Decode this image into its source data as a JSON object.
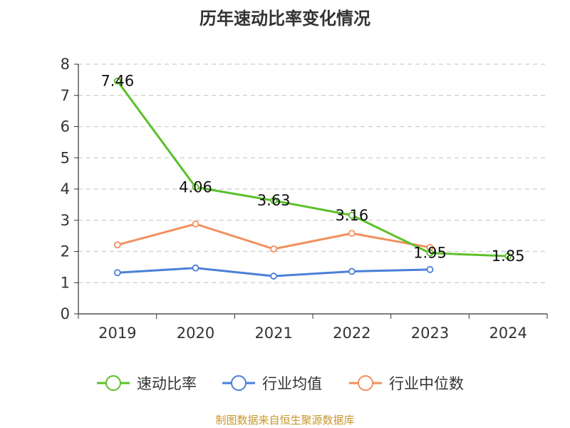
{
  "chart_data": {
    "type": "line",
    "title": "历年速动比率变化情况",
    "categories": [
      "2019",
      "2020",
      "2021",
      "2022",
      "2023",
      "2024"
    ],
    "ylim": [
      0,
      8
    ],
    "yticks": [
      0,
      1,
      2,
      3,
      4,
      5,
      6,
      7,
      8
    ],
    "grid": true,
    "legend_position": "bottom",
    "series": [
      {
        "name": "速动比率",
        "color": "#5cc02a",
        "values": [
          7.46,
          4.06,
          3.63,
          3.16,
          1.95,
          1.85
        ],
        "labels": [
          "7.46",
          "4.06",
          "3.63",
          "3.16",
          "1.95",
          "1.85"
        ]
      },
      {
        "name": "行业均值",
        "color": "#4a7fd8",
        "values": [
          1.32,
          1.47,
          1.21,
          1.36,
          1.42,
          null
        ],
        "labels": null
      },
      {
        "name": "行业中位数",
        "color": "#f2905e",
        "values": [
          2.21,
          2.88,
          2.08,
          2.58,
          2.13,
          null
        ],
        "labels": null
      }
    ]
  },
  "source": "制图数据来自恒生聚源数据库"
}
